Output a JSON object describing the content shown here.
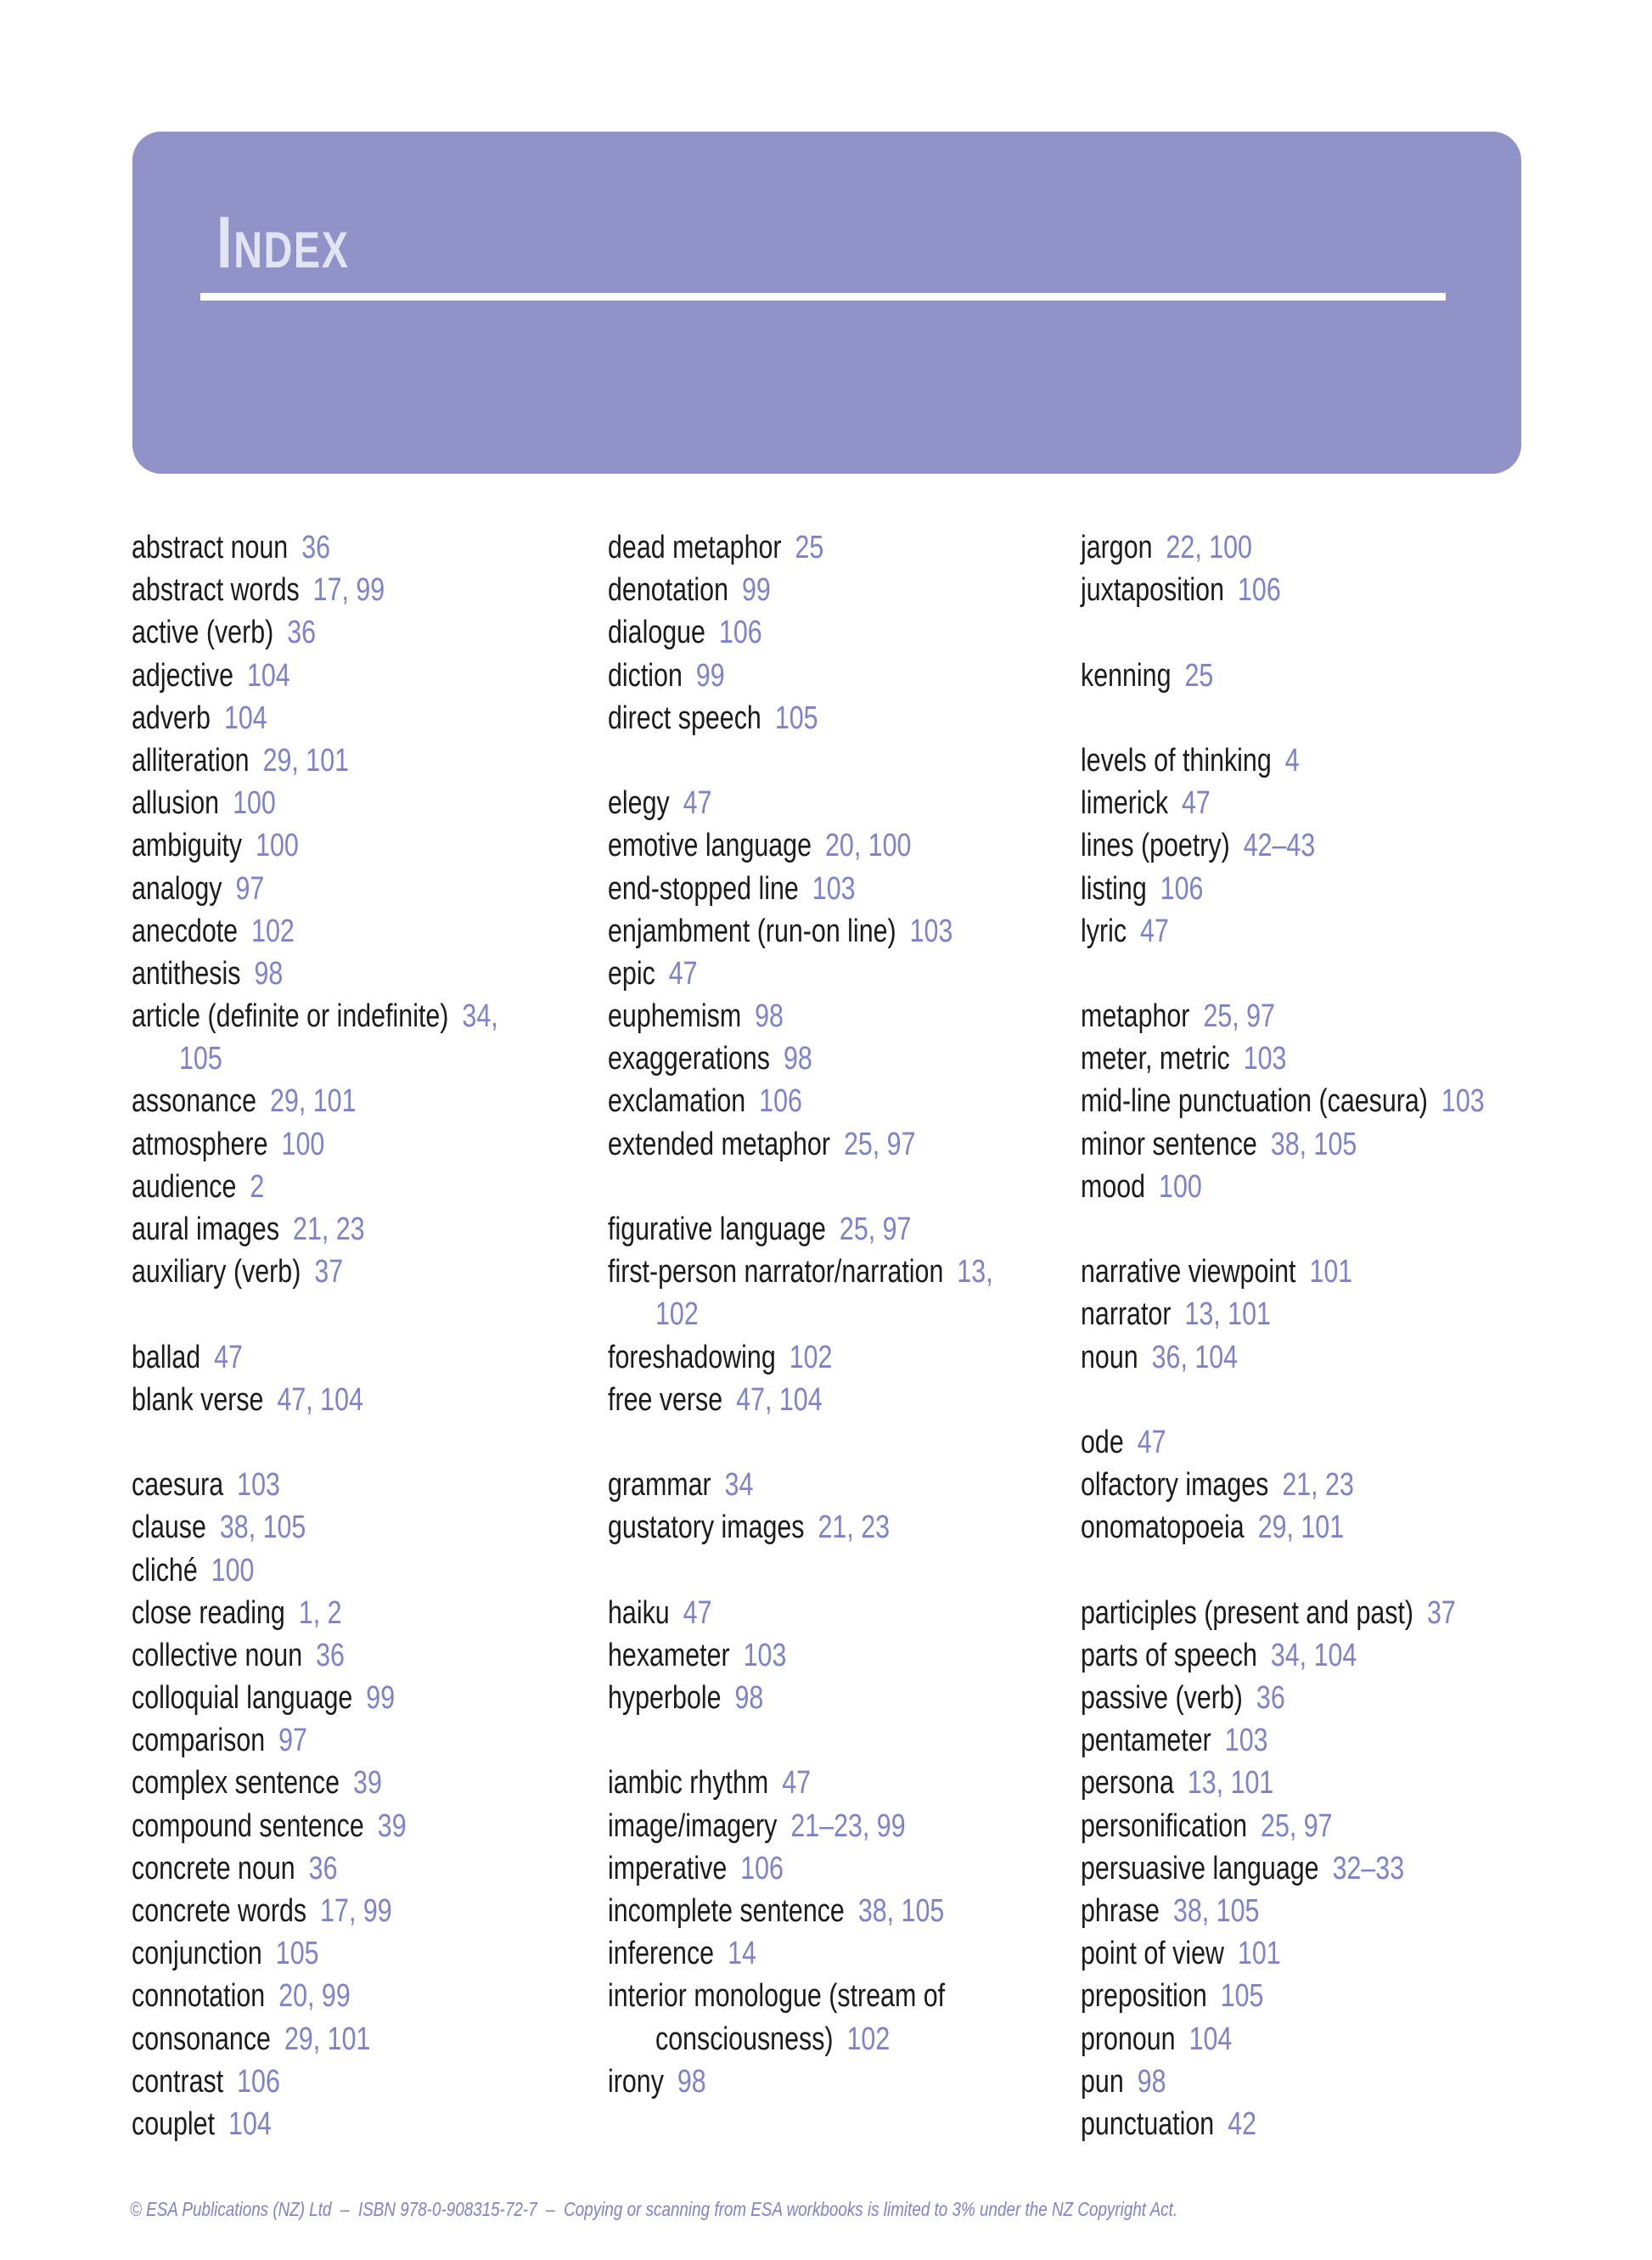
{
  "header": {
    "title_initial": "I",
    "title_rest": "NDEX"
  },
  "colors": {
    "background": "#ffffff",
    "banner": "#9192c8",
    "banner_title": "#e3e4f2",
    "title_underline": "#ffffff",
    "entry_text": "#1b1b1b",
    "page_number": "#7e82ca",
    "footer_text": "#7e82ca"
  },
  "index": {
    "columns": [
      [
        {
          "term": "abstract noun",
          "pages": "36"
        },
        {
          "term": "abstract words",
          "pages": "17, 99"
        },
        {
          "term": "active (verb)",
          "pages": "36"
        },
        {
          "term": "adjective",
          "pages": "104"
        },
        {
          "term": "adverb",
          "pages": "104"
        },
        {
          "term": "alliteration",
          "pages": "29, 101"
        },
        {
          "term": "allusion",
          "pages": "100"
        },
        {
          "term": "ambiguity",
          "pages": "100"
        },
        {
          "term": "analogy",
          "pages": "97"
        },
        {
          "term": "anecdote",
          "pages": "102"
        },
        {
          "term": "antithesis",
          "pages": "98"
        },
        {
          "term": "article (definite or indefinite)",
          "pages": "34,"
        },
        {
          "pages": "105",
          "indent": true
        },
        {
          "term": "assonance",
          "pages": "29, 101"
        },
        {
          "term": "atmosphere",
          "pages": "100"
        },
        {
          "term": "audience",
          "pages": "2"
        },
        {
          "term": "aural images",
          "pages": "21, 23"
        },
        {
          "term": "auxiliary (verb)",
          "pages": "37"
        },
        {},
        {
          "term": "ballad",
          "pages": "47"
        },
        {
          "term": "blank verse",
          "pages": "47, 104"
        },
        {},
        {
          "term": "caesura",
          "pages": "103"
        },
        {
          "term": "clause",
          "pages": "38, 105"
        },
        {
          "term": "cliché",
          "pages": "100"
        },
        {
          "term": "close reading",
          "pages": "1, 2"
        },
        {
          "term": "collective noun",
          "pages": "36"
        },
        {
          "term": "colloquial language",
          "pages": "99"
        },
        {
          "term": "comparison",
          "pages": "97"
        },
        {
          "term": "complex sentence",
          "pages": "39"
        },
        {
          "term": "compound sentence",
          "pages": "39"
        },
        {
          "term": "concrete noun",
          "pages": "36"
        },
        {
          "term": "concrete words",
          "pages": "17, 99"
        },
        {
          "term": "conjunction",
          "pages": "105"
        },
        {
          "term": "connotation",
          "pages": "20, 99"
        },
        {
          "term": "consonance",
          "pages": "29, 101"
        },
        {
          "term": "contrast",
          "pages": "106"
        },
        {
          "term": "couplet",
          "pages": "104"
        }
      ],
      [
        {
          "term": "dead metaphor",
          "pages": "25"
        },
        {
          "term": "denotation",
          "pages": "99"
        },
        {
          "term": "dialogue",
          "pages": "106"
        },
        {
          "term": "diction",
          "pages": "99"
        },
        {
          "term": "direct speech",
          "pages": "105"
        },
        {},
        {
          "term": "elegy",
          "pages": "47"
        },
        {
          "term": "emotive language",
          "pages": "20, 100"
        },
        {
          "term": "end-stopped line",
          "pages": "103"
        },
        {
          "term": "enjambment (run-on line)",
          "pages": "103"
        },
        {
          "term": "epic",
          "pages": "47"
        },
        {
          "term": "euphemism",
          "pages": "98"
        },
        {
          "term": "exaggerations",
          "pages": "98"
        },
        {
          "term": "exclamation",
          "pages": "106"
        },
        {
          "term": "extended metaphor",
          "pages": "25, 97"
        },
        {},
        {
          "term": "figurative language",
          "pages": "25, 97"
        },
        {
          "term": "first-person narrator/narration",
          "pages": "13,"
        },
        {
          "pages": "102",
          "indent": true
        },
        {
          "term": "foreshadowing",
          "pages": "102"
        },
        {
          "term": "free verse",
          "pages": "47, 104"
        },
        {},
        {
          "term": "grammar",
          "pages": "34"
        },
        {
          "term": "gustatory images",
          "pages": "21, 23"
        },
        {},
        {
          "term": "haiku",
          "pages": "47"
        },
        {
          "term": "hexameter",
          "pages": "103"
        },
        {
          "term": "hyperbole",
          "pages": "98"
        },
        {},
        {
          "term": "iambic rhythm",
          "pages": "47"
        },
        {
          "term": "image/imagery",
          "pages": "21–23, 99"
        },
        {
          "term": "imperative",
          "pages": "106"
        },
        {
          "term": "incomplete sentence",
          "pages": "38, 105"
        },
        {
          "term": "inference",
          "pages": "14"
        },
        {
          "term": "interior monologue (stream of"
        },
        {
          "term": "consciousness)",
          "pages": "102",
          "indent": true
        },
        {
          "term": "irony",
          "pages": "98"
        }
      ],
      [
        {
          "term": "jargon",
          "pages": "22, 100"
        },
        {
          "term": "juxtaposition",
          "pages": "106"
        },
        {},
        {
          "term": "kenning",
          "pages": "25"
        },
        {},
        {
          "term": "levels of thinking",
          "pages": "4"
        },
        {
          "term": "limerick",
          "pages": "47"
        },
        {
          "term": "lines (poetry)",
          "pages": "42–43"
        },
        {
          "term": "listing",
          "pages": "106"
        },
        {
          "term": "lyric",
          "pages": "47"
        },
        {},
        {
          "term": "metaphor",
          "pages": "25, 97"
        },
        {
          "term": "meter, metric",
          "pages": "103"
        },
        {
          "term": "mid-line punctuation (caesura)",
          "pages": "103"
        },
        {
          "term": "minor sentence",
          "pages": "38, 105"
        },
        {
          "term": "mood",
          "pages": "100"
        },
        {},
        {
          "term": "narrative viewpoint",
          "pages": "101"
        },
        {
          "term": "narrator",
          "pages": "13, 101"
        },
        {
          "term": "noun",
          "pages": "36, 104"
        },
        {},
        {
          "term": "ode",
          "pages": "47"
        },
        {
          "term": "olfactory images",
          "pages": "21, 23"
        },
        {
          "term": "onomatopoeia",
          "pages": "29, 101"
        },
        {},
        {
          "term": "participles (present and past)",
          "pages": "37"
        },
        {
          "term": "parts of speech",
          "pages": "34, 104"
        },
        {
          "term": "passive (verb)",
          "pages": "36"
        },
        {
          "term": "pentameter",
          "pages": "103"
        },
        {
          "term": "persona",
          "pages": "13, 101"
        },
        {
          "term": "personification",
          "pages": "25, 97"
        },
        {
          "term": "persuasive language",
          "pages": "32–33"
        },
        {
          "term": "phrase",
          "pages": "38, 105"
        },
        {
          "term": "point of view",
          "pages": "101"
        },
        {
          "term": "preposition",
          "pages": "105"
        },
        {
          "term": "pronoun",
          "pages": "104"
        },
        {
          "term": "pun",
          "pages": "98"
        },
        {
          "term": "punctuation",
          "pages": "42"
        }
      ]
    ]
  },
  "footer": {
    "text": "© ESA Publications (NZ) Ltd  –  ISBN 978-0-908315-72-7  –  Copying or scanning from ESA workbooks is limited to 3% under the NZ Copyright Act."
  }
}
